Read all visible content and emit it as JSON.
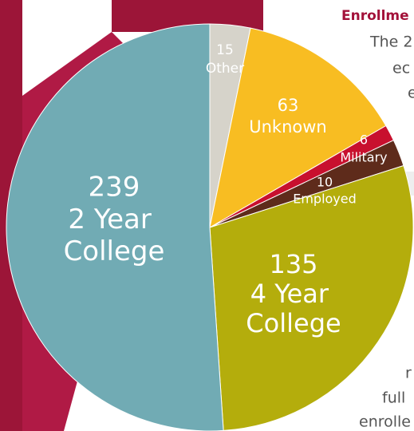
{
  "chart_data": {
    "type": "pie",
    "categories": [
      "Other",
      "Unknown",
      "Military",
      "Employed",
      "4 Year College",
      "2 Year College"
    ],
    "values": [
      15,
      63,
      6,
      10,
      135,
      239
    ],
    "colors": [
      "#d6d3ca",
      "#f8bd22",
      "#c8102e",
      "#5e2b1b",
      "#b4ad0c",
      "#71abb4"
    ],
    "background_text": [
      "Enrollme",
      "The 2",
      "ec",
      "e",
      "r",
      "full",
      "enrolle"
    ]
  }
}
